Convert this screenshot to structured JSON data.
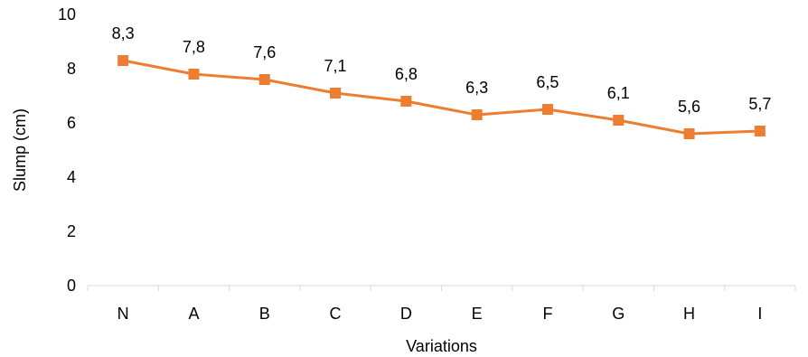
{
  "chart_data": {
    "type": "line",
    "xlabel": "Variations",
    "ylabel": "Slump (cm)",
    "categories": [
      "N",
      "A",
      "B",
      "C",
      "D",
      "E",
      "F",
      "G",
      "H",
      "I"
    ],
    "series": [
      {
        "values": [
          8.3,
          7.8,
          7.6,
          7.1,
          6.8,
          6.3,
          6.5,
          6.1,
          5.6,
          5.7
        ],
        "data_labels": [
          "8,3",
          "7,8",
          "7,6",
          "7,1",
          "6,8",
          "6,3",
          "6,5",
          "6,1",
          "5,6",
          "5,7"
        ],
        "color": "#ED7D31",
        "marker": "square"
      }
    ],
    "ylim": [
      0,
      10
    ],
    "yticks": [
      0,
      2,
      4,
      6,
      8,
      10
    ],
    "grid": false,
    "legend": "none",
    "axis_color": "#D9D9D9"
  }
}
